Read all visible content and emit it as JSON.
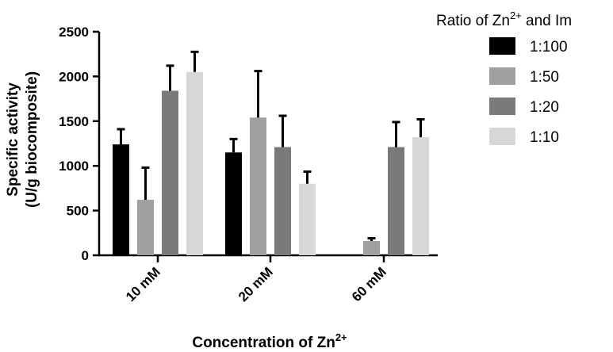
{
  "chart_data": {
    "type": "bar",
    "title": "",
    "categories": [
      "10 mM",
      "20 mM",
      "60 mM"
    ],
    "xlabel": "Concentration of Zn",
    "xlabel_sup": "2+",
    "ylabel_line1": "Specific activity",
    "ylabel_line2": "(U/g biocomposite)",
    "ylim": [
      0,
      2500
    ],
    "yticks": [
      0,
      500,
      1000,
      1500,
      2000,
      2500
    ],
    "grid": false,
    "legend": {
      "title_pre": "Ratio of Zn",
      "title_sup": "2+",
      "title_post": " and Im",
      "placement": "right"
    },
    "series": [
      {
        "name": "1:100",
        "color": "#000000",
        "values": [
          1240,
          1150,
          0
        ],
        "errors": [
          170,
          150,
          0
        ]
      },
      {
        "name": "1:50",
        "color": "#a0a0a0",
        "values": [
          620,
          1540,
          160
        ],
        "errors": [
          360,
          520,
          30
        ]
      },
      {
        "name": "1:20",
        "color": "#7a7a7a",
        "values": [
          1840,
          1210,
          1210
        ],
        "errors": [
          280,
          350,
          280
        ]
      },
      {
        "name": "1:10",
        "color": "#d8d8d8",
        "values": [
          2050,
          800,
          1320
        ],
        "errors": [
          225,
          135,
          200
        ]
      }
    ]
  }
}
